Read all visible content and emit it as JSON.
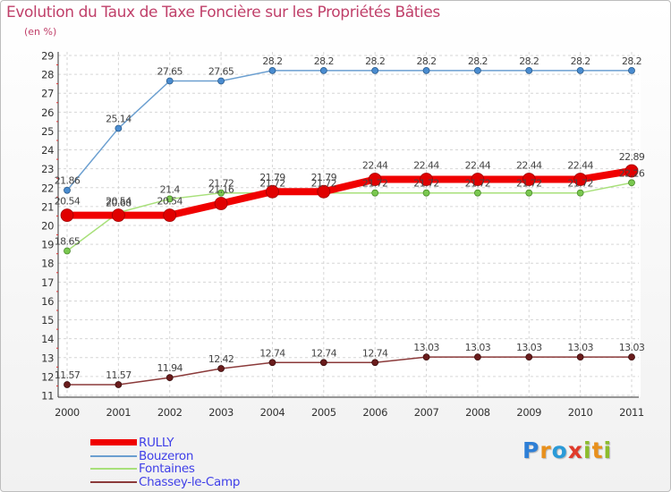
{
  "chart_data": {
    "type": "line",
    "title": "Evolution du Taux de Taxe Foncière sur les Propriétés Bâties",
    "unit_label": "(en %)",
    "ylim": [
      11,
      29
    ],
    "y_ticks": [
      "11",
      "12",
      "13",
      "14",
      "15",
      "16",
      "17",
      "18",
      "19",
      "20",
      "21",
      "22",
      "23",
      "24",
      "25",
      "26",
      "27",
      "28",
      "29"
    ],
    "categories": [
      "2000",
      "2001",
      "2002",
      "2003",
      "2004",
      "2005",
      "2006",
      "2007",
      "2008",
      "2009",
      "2010",
      "2011"
    ],
    "series": [
      {
        "name": "Bouzeron",
        "color": "#6b9fd0",
        "marker": "#4a8cd0",
        "values": [
          21.86,
          25.14,
          27.65,
          27.65,
          28.2,
          28.2,
          28.2,
          28.2,
          28.2,
          28.2,
          28.2,
          28.2
        ],
        "labels": [
          "21.86",
          "25.14",
          "27.65",
          "27.65",
          "28.2",
          "28.2",
          "28.2",
          "28.2",
          "28.2",
          "28.2",
          "28.2",
          "28.2"
        ]
      },
      {
        "name": "Fontaines",
        "color": "#a8e07a",
        "marker": "#7ac850",
        "values": [
          18.65,
          20.68,
          21.4,
          21.72,
          21.72,
          21.72,
          21.72,
          21.72,
          21.72,
          21.72,
          21.72,
          22.26
        ],
        "labels": [
          "18.65",
          "20.68",
          "21.4",
          "21.72",
          "21.72",
          "21.72",
          "21.72",
          "21.72",
          "21.72",
          "21.72",
          "21.72",
          "22.26"
        ]
      },
      {
        "name": "Chassey-le-Camp",
        "color": "#8b3a3a",
        "marker": "#6a1c1c",
        "values": [
          11.57,
          11.57,
          11.94,
          12.42,
          12.74,
          12.74,
          12.74,
          13.03,
          13.03,
          13.03,
          13.03,
          13.03
        ],
        "labels": [
          "11.57",
          "11.57",
          "11.94",
          "12.42",
          "12.74",
          "12.74",
          "12.74",
          "13.03",
          "13.03",
          "13.03",
          "13.03",
          "13.03"
        ]
      },
      {
        "name": "RULLY",
        "color": "#f00000",
        "marker": "#e00000",
        "values": [
          20.54,
          20.54,
          20.54,
          21.16,
          21.79,
          21.79,
          22.44,
          22.44,
          22.44,
          22.44,
          22.44,
          22.89
        ],
        "labels": [
          "20.54",
          "20.54",
          "20.54",
          "21.16",
          "21.79",
          "21.79",
          "22.44",
          "22.44",
          "22.44",
          "22.44",
          "22.44",
          "22.89"
        ]
      }
    ],
    "legend": [
      {
        "name": "RULLY",
        "color": "#f00000"
      },
      {
        "name": "Bouzeron",
        "color": "#6b9fd0"
      },
      {
        "name": "Fontaines",
        "color": "#a8e07a"
      },
      {
        "name": "Chassey-le-Camp",
        "color": "#8b3a3a"
      }
    ],
    "grid": "dashed"
  },
  "brand": {
    "letters": [
      "P",
      "r",
      "o",
      "x",
      "i",
      "t",
      "i"
    ]
  }
}
